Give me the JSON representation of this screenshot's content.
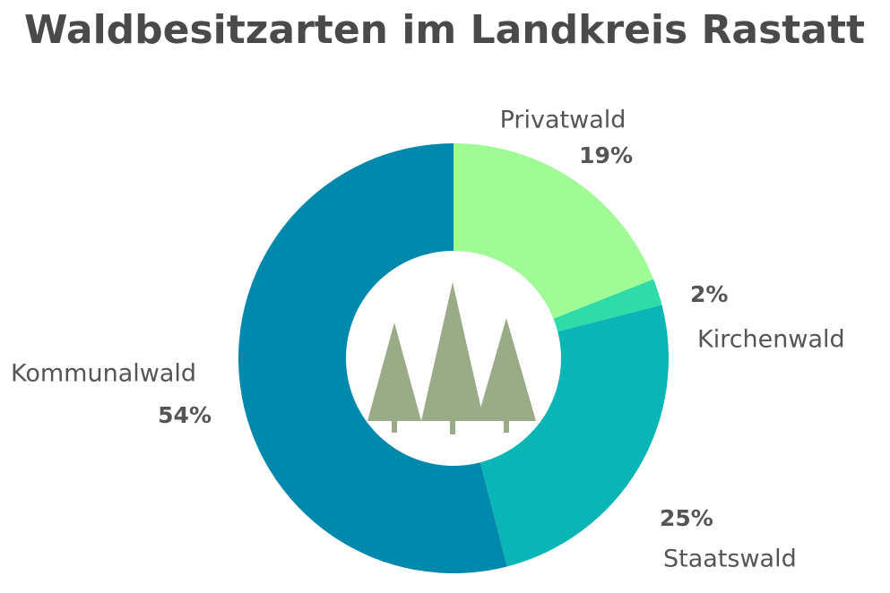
{
  "chart_data": {
    "type": "donut",
    "title": "Waldbesitzarten im Landkreis Rastatt",
    "categories": [
      "Privatwald",
      "Kirchenwald",
      "Staatswald",
      "Kommunalwald"
    ],
    "values": [
      19,
      2,
      25,
      54
    ],
    "value_labels": [
      "19%",
      "2%",
      "25%",
      "54%"
    ],
    "colors": [
      "#a0fa96",
      "#2fdca8",
      "#0ab5b5",
      "#0088ad"
    ]
  }
}
